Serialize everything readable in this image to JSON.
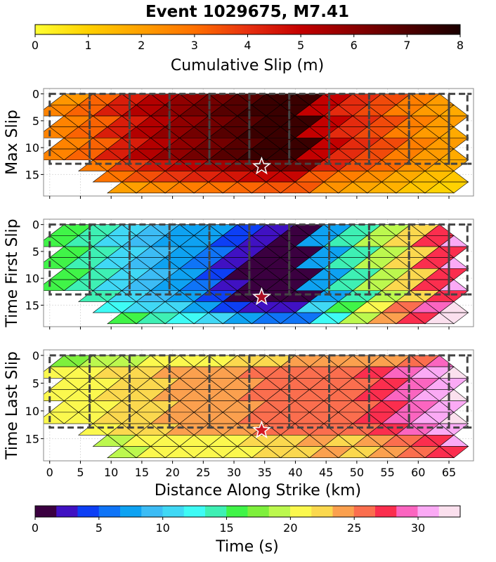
{
  "figure": {
    "title": "Event 1029675, M7.41"
  },
  "colorbars": {
    "slip": {
      "label": "Cumulative Slip (m)",
      "min": 0,
      "max": 8,
      "ticks": [
        "0",
        "1",
        "2",
        "3",
        "4",
        "5",
        "6",
        "7",
        "8"
      ],
      "colors": [
        "#ffff33",
        "#ffd000",
        "#ffa000",
        "#ff7000",
        "#e73010",
        "#c40000",
        "#8a0000",
        "#500000",
        "#1a0000"
      ]
    },
    "time": {
      "label": "Time (s)",
      "min": 0,
      "max": 33.3,
      "ticks": [
        "0",
        "5",
        "10",
        "15",
        "20",
        "25",
        "30"
      ],
      "colors": [
        "#3b0040",
        "#4011c2",
        "#0d3ff5",
        "#0f74f7",
        "#0ea2f2",
        "#3cbcf5",
        "#40d8f5",
        "#3efbf5",
        "#3ef0b4",
        "#40f448",
        "#7ef03c",
        "#bcf84e",
        "#fbf84e",
        "#fbd84e",
        "#fba04e",
        "#fb6e4e",
        "#fb2e4e",
        "#fb65c0",
        "#fbaaf5",
        "#fbe0ee"
      ]
    }
  },
  "chart_data": [
    {
      "type": "heatmap",
      "panel": "max_slip",
      "ylabel": "Max Slip",
      "x_unit_label": "",
      "xlim": [
        -1,
        69
      ],
      "ylim": [
        19,
        -1
      ],
      "xticks": [
        0,
        5,
        10,
        15,
        20,
        25,
        30,
        35,
        40,
        45,
        50,
        55,
        60,
        65
      ],
      "yticks": [
        "0",
        "5",
        "10",
        "15"
      ],
      "ytick_values": [
        0,
        5,
        10,
        15
      ],
      "grid": true,
      "colorbar": "slip",
      "hypocenter": {
        "x": 34.5,
        "y": 13.5
      },
      "segments_x": [
        [
          0,
          6.5
        ],
        [
          6.5,
          13
        ],
        [
          13,
          19.5
        ],
        [
          19.5,
          26
        ],
        [
          26,
          32.5
        ],
        [
          32.5,
          39
        ],
        [
          39,
          45.5
        ],
        [
          45.5,
          52
        ],
        [
          52,
          58.5
        ],
        [
          58.5,
          65
        ],
        [
          65,
          68
        ]
      ],
      "segments_depth": [
        0,
        13
      ],
      "values_by_column": [
        2.6,
        3.2,
        4.4,
        5.3,
        5.9,
        6.4,
        6.9,
        7.4,
        7.4,
        5.0,
        4.1,
        3.6,
        2.7,
        2.1,
        1.8
      ],
      "depth_decay": "slip decreases with depth below 13 km"
    },
    {
      "type": "heatmap",
      "panel": "time_first_slip",
      "ylabel": "Time First Slip",
      "xlim": [
        -1,
        69
      ],
      "ylim": [
        19,
        -1
      ],
      "xticks": [
        0,
        5,
        10,
        15,
        20,
        25,
        30,
        35,
        40,
        45,
        50,
        55,
        60,
        65
      ],
      "yticks": [
        "0",
        "5",
        "10",
        "15"
      ],
      "ytick_values": [
        0,
        5,
        10,
        15
      ],
      "grid": true,
      "colorbar": "time",
      "hypocenter": {
        "x": 34.5,
        "y": 13.5
      },
      "values_by_column": [
        16,
        14,
        11,
        9.5,
        8,
        7,
        5,
        3,
        1,
        8,
        14,
        19,
        23,
        27,
        31
      ],
      "depth_decay": "earliest times near hypocenter"
    },
    {
      "type": "heatmap",
      "panel": "time_last_slip",
      "ylabel": "Time Last Slip",
      "xlabel": "Distance Along Strike (km)",
      "xlim": [
        -1,
        69
      ],
      "ylim": [
        19,
        -1
      ],
      "xticks": [
        0,
        5,
        10,
        15,
        20,
        25,
        30,
        35,
        40,
        45,
        50,
        55,
        60,
        65
      ],
      "xtick_labels": [
        "0",
        "5",
        "10",
        "15",
        "20",
        "25",
        "30",
        "35",
        "40",
        "45",
        "50",
        "55",
        "60",
        "65"
      ],
      "yticks": [
        "0",
        "5",
        "10",
        "15"
      ],
      "ytick_values": [
        0,
        5,
        10,
        15
      ],
      "grid": true,
      "colorbar": "time",
      "hypocenter": {
        "x": 34.5,
        "y": 13.5
      },
      "values_by_column": [
        20,
        21,
        22,
        23,
        23.5,
        24,
        24.5,
        25,
        26,
        26.5,
        26,
        27,
        29,
        31,
        33
      ],
      "depth_decay": "later times in middle depths"
    }
  ]
}
